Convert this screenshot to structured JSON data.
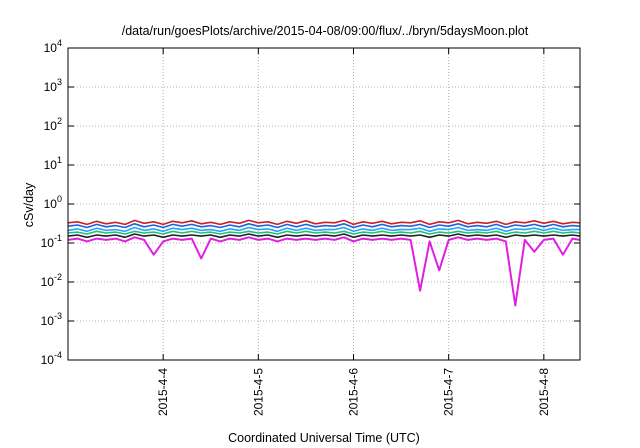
{
  "chart_data": {
    "type": "line",
    "title": "/data/run/goesPlots/archive/2015-04-08/09:00/flux/../bryn/5daysMoon.plot",
    "xlabel": "Coordinated Universal Time (UTC)",
    "ylabel": "cSv/day",
    "yscale": "log",
    "ylim": [
      0.0001,
      10000
    ],
    "xlim": [
      3.0,
      8.38
    ],
    "grid": true,
    "y_ticks": [
      {
        "base": "10",
        "exp": "-4"
      },
      {
        "base": "10",
        "exp": "-3"
      },
      {
        "base": "10",
        "exp": "-2"
      },
      {
        "base": "10",
        "exp": "-1"
      },
      {
        "base": "10",
        "exp": "0"
      },
      {
        "base": "10",
        "exp": "1"
      },
      {
        "base": "10",
        "exp": "2"
      },
      {
        "base": "10",
        "exp": "3"
      },
      {
        "base": "10",
        "exp": "4"
      }
    ],
    "x_ticks": [
      {
        "day": 4,
        "label": "2015-4-4"
      },
      {
        "day": 5,
        "label": "2015-4-5"
      },
      {
        "day": 6,
        "label": "2015-4-6"
      },
      {
        "day": 7,
        "label": "2015-4-7"
      },
      {
        "day": 8,
        "label": "2015-4-8"
      }
    ],
    "x_day": [
      3.0,
      3.1,
      3.2,
      3.3,
      3.4,
      3.5,
      3.6,
      3.7,
      3.8,
      3.9,
      4.0,
      4.1,
      4.2,
      4.3,
      4.4,
      4.5,
      4.6,
      4.7,
      4.8,
      4.9,
      5.0,
      5.1,
      5.2,
      5.3,
      5.4,
      5.5,
      5.6,
      5.7,
      5.8,
      5.9,
      6.0,
      6.1,
      6.2,
      6.3,
      6.4,
      6.5,
      6.6,
      6.7,
      6.8,
      6.9,
      7.0,
      7.1,
      7.2,
      7.3,
      7.4,
      7.5,
      7.6,
      7.7,
      7.8,
      7.9,
      8.0,
      8.1,
      8.2,
      8.3,
      8.38
    ],
    "series": [
      {
        "color": "#cc2020",
        "values": [
          0.33,
          0.35,
          0.3,
          0.36,
          0.31,
          0.34,
          0.3,
          0.38,
          0.32,
          0.35,
          0.3,
          0.36,
          0.33,
          0.37,
          0.31,
          0.34,
          0.3,
          0.35,
          0.32,
          0.38,
          0.33,
          0.35,
          0.3,
          0.36,
          0.32,
          0.37,
          0.31,
          0.34,
          0.33,
          0.38,
          0.3,
          0.35,
          0.32,
          0.36,
          0.31,
          0.34,
          0.33,
          0.37,
          0.3,
          0.35,
          0.33,
          0.38,
          0.31,
          0.34,
          0.32,
          0.36,
          0.3,
          0.35,
          0.33,
          0.37,
          0.32,
          0.36,
          0.31,
          0.34,
          0.33
        ]
      },
      {
        "color": "#2060e0",
        "values": [
          0.27,
          0.29,
          0.25,
          0.3,
          0.26,
          0.28,
          0.25,
          0.31,
          0.26,
          0.29,
          0.25,
          0.3,
          0.27,
          0.3,
          0.26,
          0.28,
          0.25,
          0.29,
          0.26,
          0.31,
          0.27,
          0.29,
          0.25,
          0.3,
          0.26,
          0.3,
          0.26,
          0.28,
          0.27,
          0.31,
          0.25,
          0.29,
          0.26,
          0.3,
          0.26,
          0.28,
          0.27,
          0.3,
          0.25,
          0.29,
          0.27,
          0.31,
          0.26,
          0.28,
          0.26,
          0.3,
          0.25,
          0.29,
          0.27,
          0.3,
          0.26,
          0.3,
          0.26,
          0.28,
          0.27
        ]
      },
      {
        "color": "#20a8f0",
        "values": [
          0.21,
          0.23,
          0.2,
          0.24,
          0.21,
          0.22,
          0.2,
          0.25,
          0.21,
          0.23,
          0.2,
          0.24,
          0.22,
          0.24,
          0.21,
          0.22,
          0.2,
          0.23,
          0.21,
          0.25,
          0.22,
          0.23,
          0.2,
          0.24,
          0.21,
          0.24,
          0.21,
          0.22,
          0.22,
          0.25,
          0.2,
          0.23,
          0.21,
          0.24,
          0.21,
          0.22,
          0.22,
          0.24,
          0.2,
          0.23,
          0.22,
          0.25,
          0.21,
          0.22,
          0.21,
          0.24,
          0.2,
          0.23,
          0.22,
          0.24,
          0.21,
          0.24,
          0.21,
          0.22,
          0.22
        ]
      },
      {
        "color": "#20c080",
        "values": [
          0.18,
          0.19,
          0.17,
          0.2,
          0.18,
          0.19,
          0.17,
          0.2,
          0.18,
          0.19,
          0.17,
          0.2,
          0.18,
          0.2,
          0.18,
          0.19,
          0.17,
          0.19,
          0.18,
          0.2,
          0.18,
          0.19,
          0.17,
          0.2,
          0.18,
          0.2,
          0.18,
          0.19,
          0.18,
          0.2,
          0.17,
          0.19,
          0.18,
          0.2,
          0.18,
          0.19,
          0.18,
          0.2,
          0.17,
          0.19,
          0.18,
          0.2,
          0.18,
          0.19,
          0.18,
          0.2,
          0.17,
          0.19,
          0.18,
          0.2,
          0.18,
          0.2,
          0.18,
          0.19,
          0.18
        ]
      },
      {
        "color": "#202020",
        "values": [
          0.15,
          0.16,
          0.14,
          0.16,
          0.15,
          0.16,
          0.14,
          0.17,
          0.15,
          0.16,
          0.14,
          0.16,
          0.15,
          0.16,
          0.15,
          0.16,
          0.14,
          0.16,
          0.15,
          0.17,
          0.15,
          0.16,
          0.14,
          0.16,
          0.15,
          0.16,
          0.15,
          0.16,
          0.15,
          0.17,
          0.14,
          0.16,
          0.15,
          0.16,
          0.15,
          0.16,
          0.15,
          0.16,
          0.14,
          0.16,
          0.15,
          0.17,
          0.15,
          0.16,
          0.15,
          0.16,
          0.14,
          0.16,
          0.15,
          0.16,
          0.15,
          0.16,
          0.15,
          0.16,
          0.15
        ]
      },
      {
        "color": "#e020e0",
        "values": [
          0.12,
          0.13,
          0.11,
          0.13,
          0.12,
          0.13,
          0.11,
          0.14,
          0.12,
          0.05,
          0.11,
          0.13,
          0.12,
          0.13,
          0.04,
          0.13,
          0.11,
          0.13,
          0.12,
          0.14,
          0.12,
          0.13,
          0.11,
          0.13,
          0.12,
          0.13,
          0.12,
          0.13,
          0.12,
          0.14,
          0.11,
          0.13,
          0.12,
          0.13,
          0.12,
          0.13,
          0.12,
          0.006,
          0.11,
          0.02,
          0.12,
          0.14,
          0.12,
          0.13,
          0.12,
          0.13,
          0.11,
          0.0025,
          0.12,
          0.06,
          0.12,
          0.13,
          0.05,
          0.13,
          0.12
        ]
      }
    ]
  }
}
